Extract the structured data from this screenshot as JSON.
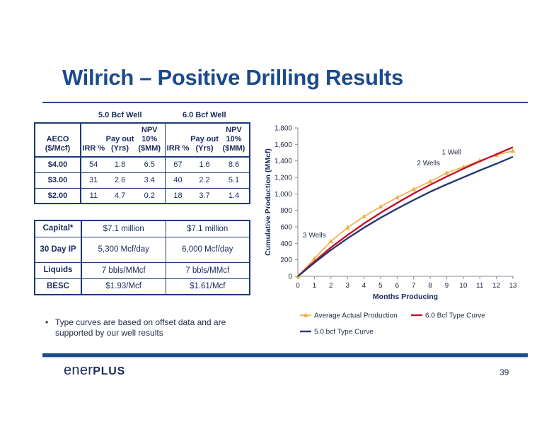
{
  "slide": {
    "title": "Wilrich – Positive Drilling Results",
    "page_number": "39",
    "logo": {
      "part1": "ener",
      "part2": "PLUS"
    },
    "note": "Type curves are based on offset data and are supported by our well results"
  },
  "economics_table": {
    "group_headers": [
      "5.0 Bcf Well",
      "6.0 Bcf Well"
    ],
    "columns": [
      "AECO ($/Mcf)",
      "IRR %",
      "Pay out (Yrs)",
      "NPV 10% ($MM)",
      "IRR %",
      "Pay out (Yrs)",
      "NPV 10% ($MM)"
    ],
    "rows": [
      [
        "$4.00",
        "54",
        "1.8",
        "6.5",
        "67",
        "1.6",
        "8.6"
      ],
      [
        "$3.00",
        "31",
        "2.6",
        "3.4",
        "40",
        "2.2",
        "5.1"
      ],
      [
        "$2.00",
        "11",
        "4.7",
        "0.2",
        "18",
        "3.7",
        "1.4"
      ]
    ]
  },
  "capital_table": {
    "rows": [
      [
        "Capital*",
        "$7.1 million",
        "$7.1 million"
      ],
      [
        "30 Day IP",
        "5,300 Mcf/day",
        "6,000 Mcf/day"
      ],
      [
        "Liquids",
        "7 bbls/MMcf",
        "7 bbls/MMcf"
      ],
      [
        "BESC",
        "$1.93/Mcf",
        "$1.61/Mcf"
      ]
    ]
  },
  "chart_data": {
    "type": "line",
    "title": "",
    "xlabel": "Months Producing",
    "ylabel": "Cumulative Production (MMcf)",
    "xlim": [
      0,
      13
    ],
    "ylim": [
      0,
      1800
    ],
    "xticks": [
      0,
      1,
      2,
      3,
      4,
      5,
      6,
      7,
      8,
      9,
      10,
      11,
      12,
      13
    ],
    "yticks": [
      0,
      200,
      400,
      600,
      800,
      1000,
      1200,
      1400,
      1600,
      1800
    ],
    "ytick_labels": [
      "0",
      "200",
      "400",
      "600",
      "800",
      "1,000",
      "1,200",
      "1,400",
      "1,600",
      "1,800"
    ],
    "grid": false,
    "legend_position": "bottom",
    "annotations": [
      {
        "text": "3 Wells",
        "x": 0.3,
        "y": 470
      },
      {
        "text": "2 Wells",
        "x": 7.2,
        "y": 1345
      },
      {
        "text": "1 Well",
        "x": 8.7,
        "y": 1480
      }
    ],
    "series": [
      {
        "name": "Average Actual Production",
        "color": "#e8b040",
        "marker": "triangle",
        "x": [
          0,
          1,
          2,
          3,
          4,
          5,
          6,
          7,
          8,
          9,
          10,
          11,
          12,
          13
        ],
        "y": [
          0,
          215,
          425,
          590,
          725,
          845,
          955,
          1055,
          1150,
          1255,
          1325,
          1405,
          1470,
          1520
        ]
      },
      {
        "name": "6.0 Bcf Type Curve",
        "color": "#c8102e",
        "marker": "none",
        "x": [
          0,
          1,
          2,
          3,
          4,
          5,
          6,
          7,
          8,
          9,
          10,
          11,
          12,
          13
        ],
        "y": [
          0,
          180,
          350,
          500,
          640,
          770,
          890,
          1005,
          1110,
          1210,
          1305,
          1395,
          1480,
          1565
        ]
      },
      {
        "name": "5.0 bcf Type Curve",
        "color": "#2a3a6e",
        "marker": "none",
        "x": [
          0,
          1,
          2,
          3,
          4,
          5,
          6,
          7,
          8,
          9,
          10,
          11,
          12,
          13
        ],
        "y": [
          0,
          165,
          320,
          460,
          590,
          710,
          820,
          925,
          1025,
          1115,
          1200,
          1285,
          1365,
          1450
        ]
      }
    ]
  }
}
